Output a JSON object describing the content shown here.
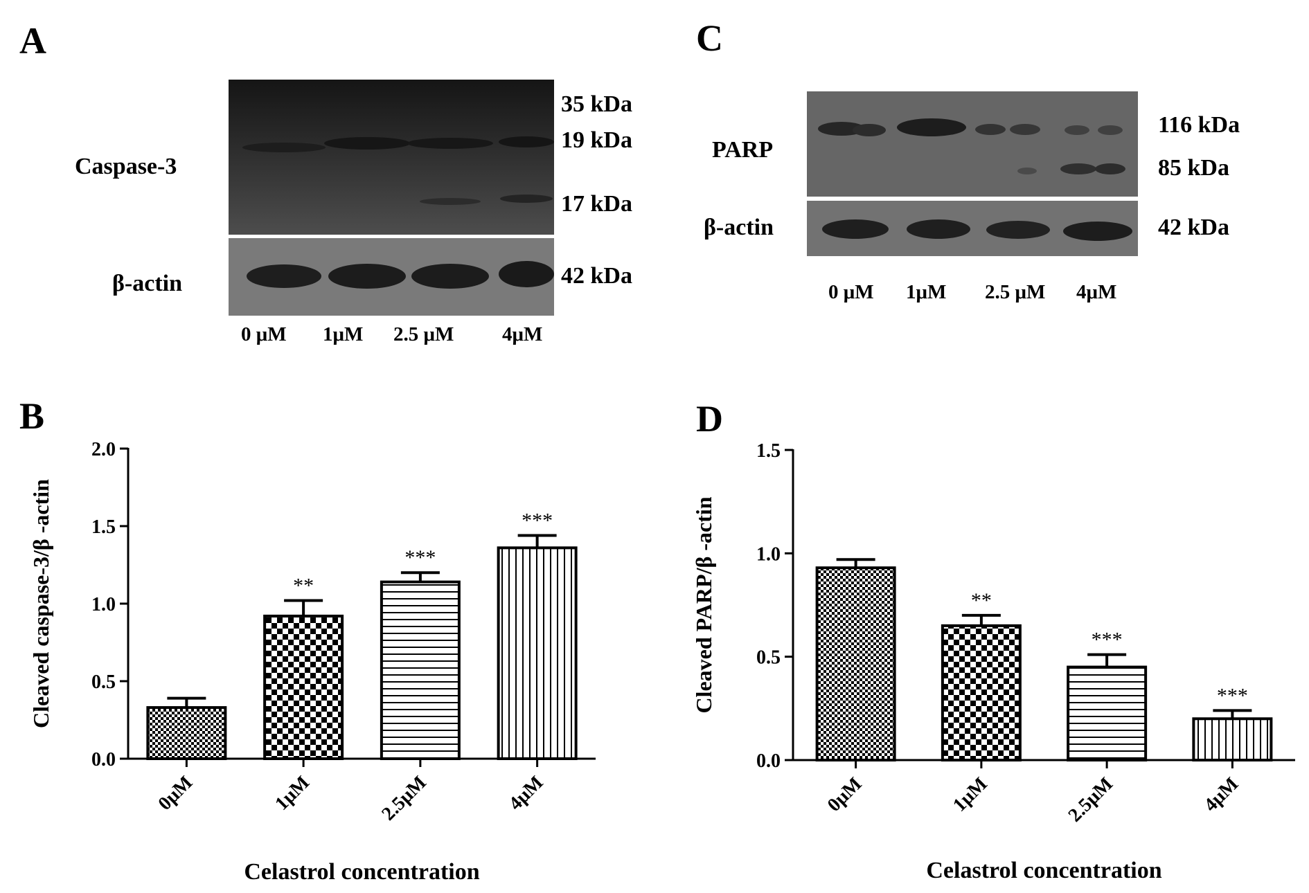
{
  "blot_A": {
    "panel": "A",
    "rows": [
      "Caspase-3",
      "β-actin"
    ],
    "markers": [
      "35 kDa",
      "19 kDa",
      "17 kDa",
      "42 kDa"
    ],
    "lanes": [
      "0 μM",
      "1μM",
      "2.5 μM",
      "4μM"
    ]
  },
  "blot_C": {
    "panel": "C",
    "rows": [
      "PARP",
      "β-actin"
    ],
    "markers": [
      "116 kDa",
      "85 kDa",
      "42 kDa"
    ],
    "lanes": [
      "0 μM",
      "1μM",
      "2.5 μM",
      "4μM"
    ]
  },
  "chart_data": [
    {
      "panel": "B",
      "type": "bar",
      "categories": [
        "0μM",
        "1μM",
        "2.5μM",
        "4μM"
      ],
      "values": [
        0.33,
        0.92,
        1.14,
        1.36
      ],
      "errors": [
        0.06,
        0.1,
        0.06,
        0.08
      ],
      "significance": [
        "",
        "**",
        "***",
        "***"
      ],
      "patterns": [
        "fine-checker",
        "checker",
        "horizontal-lines",
        "vertical-lines"
      ],
      "title": "",
      "xlabel": "Celastrol concentration",
      "ylabel": "Cleaved caspase-3/β -actin",
      "ylim": [
        0,
        2.0
      ],
      "yticks": [
        "0.0",
        "0.5",
        "1.0",
        "1.5",
        "2.0"
      ],
      "grid": false
    },
    {
      "panel": "D",
      "type": "bar",
      "categories": [
        "0μM",
        "1μM",
        "2.5μM",
        "4μM"
      ],
      "values": [
        0.93,
        0.65,
        0.45,
        0.2
      ],
      "errors": [
        0.04,
        0.05,
        0.06,
        0.04
      ],
      "significance": [
        "",
        "**",
        "***",
        "***"
      ],
      "patterns": [
        "fine-checker",
        "checker",
        "horizontal-lines",
        "vertical-lines"
      ],
      "title": "",
      "xlabel": "Celastrol concentration",
      "ylabel": "Cleaved PARP/β -actin",
      "ylim": [
        0,
        1.5
      ],
      "yticks": [
        "0.0",
        "0.5",
        "1.0",
        "1.5"
      ],
      "grid": false
    }
  ]
}
